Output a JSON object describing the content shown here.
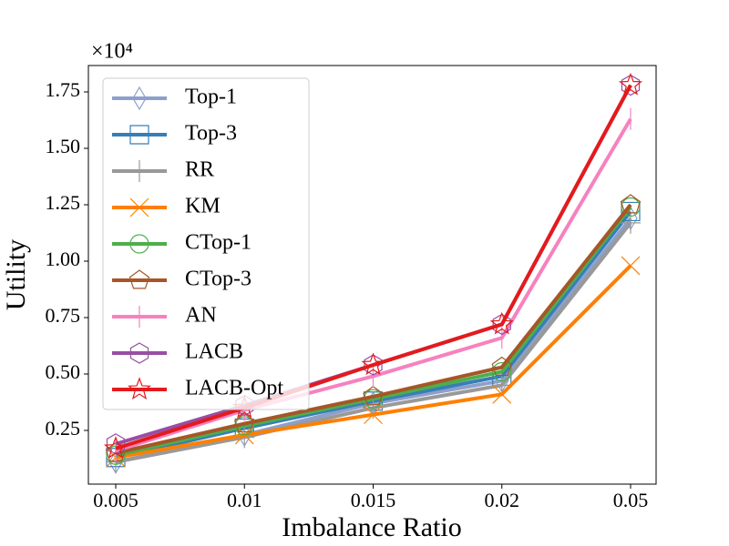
{
  "chart_data": {
    "type": "line",
    "x_label": "Imbalance Ratio",
    "y_label": "Utility",
    "y_multiplier": "×10⁴",
    "categories": [
      "0.005",
      "0.01",
      "0.015",
      "0.02",
      "0.05"
    ],
    "ylim": [
      0.012,
      1.867
    ],
    "yticks": [
      0.25,
      {
        "value": 0.5,
        "label": "0.50"
      },
      0.75,
      {
        "value": 1.0,
        "label": "1.00"
      },
      1.25,
      {
        "value": 1.5,
        "label": "1.50"
      },
      1.75
    ],
    "legend": "upper left",
    "series": [
      {
        "name": "Top-1",
        "color": "#8da0cb",
        "marker": "diamond",
        "values": [
          0.11,
          0.23,
          0.37,
          0.47,
          1.19
        ]
      },
      {
        "name": "Top-3",
        "color": "#377eb8",
        "marker": "square",
        "values": [
          0.13,
          0.26,
          0.38,
          0.49,
          1.22
        ]
      },
      {
        "name": "RR",
        "color": "#999999",
        "marker": "plus",
        "values": [
          0.11,
          0.22,
          0.35,
          0.45,
          1.17
        ]
      },
      {
        "name": "KM",
        "color": "#ff7f00",
        "marker": "x",
        "values": [
          0.13,
          0.23,
          0.32,
          0.41,
          0.98
        ]
      },
      {
        "name": "CTop-1",
        "color": "#4daf4a",
        "marker": "circle",
        "values": [
          0.14,
          0.27,
          0.39,
          0.51,
          1.24
        ]
      },
      {
        "name": "CTop-3",
        "color": "#a65628",
        "marker": "pentagon",
        "values": [
          0.15,
          0.28,
          0.4,
          0.53,
          1.25
        ]
      },
      {
        "name": "AN",
        "color": "#f781bf",
        "marker": "vline",
        "values": [
          0.16,
          0.34,
          0.49,
          0.66,
          1.63
        ]
      },
      {
        "name": "LACB",
        "color": "#984ea3",
        "marker": "hexagon",
        "values": [
          0.19,
          0.36,
          0.54,
          0.72,
          1.78
        ]
      },
      {
        "name": "LACB-Opt",
        "color": "#e41a1c",
        "marker": "star",
        "values": [
          0.17,
          0.35,
          0.54,
          0.72,
          1.78
        ]
      }
    ]
  }
}
